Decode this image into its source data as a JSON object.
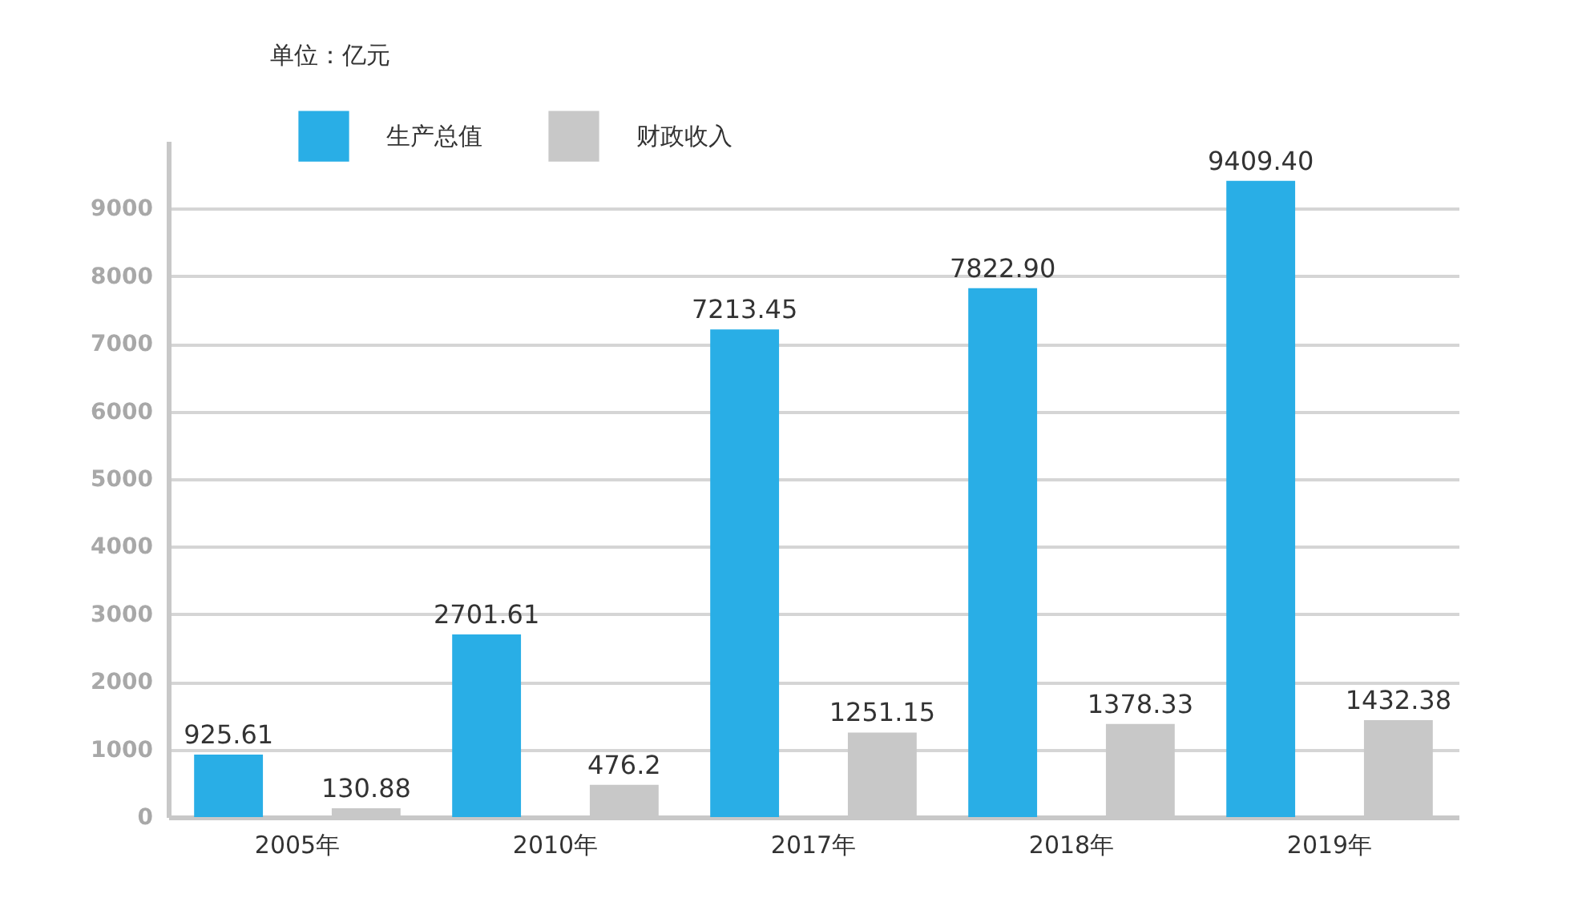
{
  "chart_data": {
    "type": "bar",
    "ylabel": "单位：亿元",
    "categories": [
      "2005年",
      "2010年",
      "2017年",
      "2018年",
      "2019年"
    ],
    "series": [
      {
        "name": "生产总值",
        "color": "#29aee6",
        "values": [
          925.61,
          2701.61,
          7213.45,
          7822.9,
          9409.4
        ],
        "value_labels": [
          "925.61",
          "2701.61",
          "7213.45",
          "7822.90",
          "9409.40"
        ]
      },
      {
        "name": "财政收入",
        "color": "#c8c8c8",
        "values": [
          130.88,
          476.2,
          1251.15,
          1378.33,
          1432.38
        ],
        "value_labels": [
          "130.88",
          "476.2",
          "1251.15",
          "1378.33",
          "1432.38"
        ]
      }
    ],
    "ylim": [
      0,
      10000
    ],
    "yticks": [
      0,
      1000,
      2000,
      3000,
      4000,
      5000,
      6000,
      7000,
      8000,
      9000
    ],
    "grid": "y",
    "legend": "top left"
  }
}
